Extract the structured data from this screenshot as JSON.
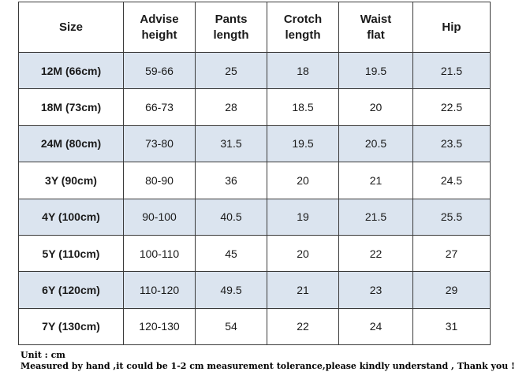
{
  "table": {
    "headers": [
      [
        "Size"
      ],
      [
        "Advise",
        "height"
      ],
      [
        "Pants",
        "length"
      ],
      [
        "Crotch",
        "length"
      ],
      [
        "Waist",
        "flat"
      ],
      [
        "Hip"
      ]
    ],
    "rows": [
      {
        "size": "12M (66cm)",
        "height": "59-66",
        "pants": "25",
        "crotch": "18",
        "waist": "19.5",
        "hip": "21.5"
      },
      {
        "size": "18M (73cm)",
        "height": "66-73",
        "pants": "28",
        "crotch": "18.5",
        "waist": "20",
        "hip": "22.5"
      },
      {
        "size": "24M (80cm)",
        "height": "73-80",
        "pants": "31.5",
        "crotch": "19.5",
        "waist": "20.5",
        "hip": "23.5"
      },
      {
        "size": "3Y (90cm)",
        "height": "80-90",
        "pants": "36",
        "crotch": "20",
        "waist": "21",
        "hip": "24.5"
      },
      {
        "size": "4Y (100cm)",
        "height": "90-100",
        "pants": "40.5",
        "crotch": "19",
        "waist": "21.5",
        "hip": "25.5"
      },
      {
        "size": "5Y (110cm)",
        "height": "100-110",
        "pants": "45",
        "crotch": "20",
        "waist": "22",
        "hip": "27"
      },
      {
        "size": "6Y (120cm)",
        "height": "110-120",
        "pants": "49.5",
        "crotch": "21",
        "waist": "23",
        "hip": "29"
      },
      {
        "size": "7Y (130cm)",
        "height": "120-130",
        "pants": "54",
        "crotch": "22",
        "waist": "24",
        "hip": "31"
      }
    ],
    "shaded_row_color": "#dbe4ef",
    "border_color": "#3a3a3a"
  },
  "notes": {
    "unit": "Unit : cm",
    "disclaimer": "Measured by hand ,it could be 1-2 cm measurement tolerance,please kindly understand , Thank you !"
  }
}
